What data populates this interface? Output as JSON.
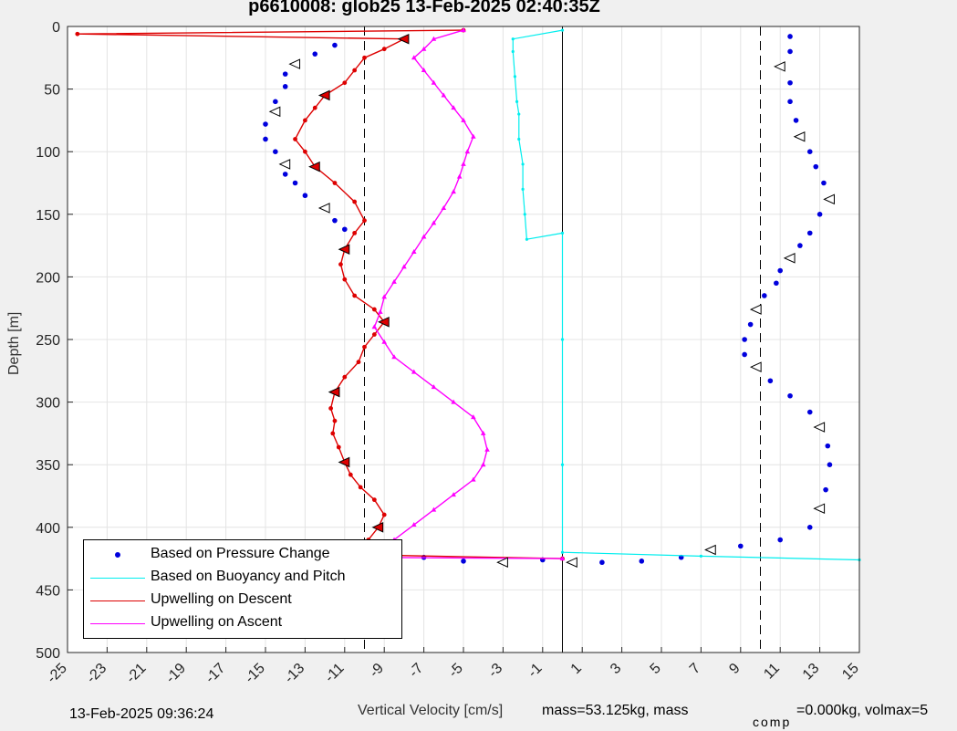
{
  "title": "p6610008: glob25 13-Feb-2025 02:40:35Z",
  "timestamp": "13-Feb-2025 09:36:24",
  "footer": {
    "mass_text": "mass=53.125kg, mass",
    "comp_sub": "comp",
    "rest_text": "=0.000kg, volmax=5"
  },
  "colors": {
    "pressure": "#0000dd",
    "buoyancy": "#00eeee",
    "descent": "#dd0000",
    "ascent": "#ff00ff",
    "background": "#f0f0f0",
    "grid": "#e4e4e4"
  },
  "chart_data": {
    "type": "scatter",
    "title": "p6610008: glob25 13-Feb-2025 02:40:35Z",
    "xlabel": "Vertical Velocity [cm/s]",
    "ylabel": "Depth [m]",
    "xlim": [
      -25,
      15
    ],
    "ylim": [
      0,
      500
    ],
    "y_reversed": true,
    "xticks": [
      -25,
      -23,
      -21,
      -19,
      -17,
      -15,
      -13,
      -11,
      -9,
      -7,
      -5,
      -3,
      -1,
      1,
      3,
      5,
      7,
      9,
      11,
      13,
      15
    ],
    "yticks": [
      0,
      50,
      100,
      150,
      200,
      250,
      300,
      350,
      400,
      450,
      500
    ],
    "grid": true,
    "legend_position": "bottom-left",
    "reference_lines": {
      "dashed_x": [
        -10,
        10
      ],
      "solid_x": [
        0
      ]
    },
    "series": [
      {
        "name": "Based on Pressure Change",
        "style": "dots",
        "points": [
          [
            -11.5,
            15
          ],
          [
            -12.5,
            22
          ],
          [
            -13.5,
            30
          ],
          [
            -14,
            38
          ],
          [
            -14,
            48
          ],
          [
            -14.5,
            60
          ],
          [
            -14.5,
            68
          ],
          [
            -15,
            78
          ],
          [
            -15,
            90
          ],
          [
            -14.5,
            100
          ],
          [
            -14,
            110
          ],
          [
            -14,
            118
          ],
          [
            -13.5,
            125
          ],
          [
            -13,
            135
          ],
          [
            -12,
            145
          ],
          [
            -11.5,
            155
          ],
          [
            -11,
            162
          ],
          [
            -1,
            426
          ],
          [
            -3,
            428
          ],
          [
            -5,
            427
          ],
          [
            -7,
            424
          ],
          [
            -9.5,
            422
          ],
          [
            0.5,
            428
          ],
          [
            2,
            428
          ],
          [
            4,
            427
          ],
          [
            6,
            424
          ],
          [
            7.5,
            418
          ],
          [
            9,
            415
          ],
          [
            11,
            410
          ],
          [
            12.5,
            400
          ],
          [
            13,
            385
          ],
          [
            13.3,
            370
          ],
          [
            13.5,
            350
          ],
          [
            13.4,
            335
          ],
          [
            13,
            320
          ],
          [
            12.5,
            308
          ],
          [
            11.5,
            295
          ],
          [
            10.5,
            283
          ],
          [
            9.8,
            272
          ],
          [
            9.2,
            262
          ],
          [
            9.2,
            250
          ],
          [
            9.5,
            238
          ],
          [
            9.8,
            226
          ],
          [
            10.2,
            215
          ],
          [
            10.8,
            205
          ],
          [
            11,
            195
          ],
          [
            11.5,
            185
          ],
          [
            12,
            175
          ],
          [
            12.5,
            165
          ],
          [
            13,
            150
          ],
          [
            13.5,
            138
          ],
          [
            13.2,
            125
          ],
          [
            12.8,
            112
          ],
          [
            12.5,
            100
          ],
          [
            12,
            88
          ],
          [
            11.8,
            75
          ],
          [
            11.5,
            60
          ],
          [
            11.5,
            45
          ],
          [
            11,
            32
          ],
          [
            11.5,
            20
          ],
          [
            11.5,
            8
          ]
        ]
      },
      {
        "name": "Based on Buoyancy and Pitch",
        "style": "line",
        "points": [
          [
            0,
            3
          ],
          [
            -2.5,
            10
          ],
          [
            -2.5,
            20
          ],
          [
            -2.4,
            40
          ],
          [
            -2.3,
            60
          ],
          [
            -2.2,
            70
          ],
          [
            -2.2,
            90
          ],
          [
            -2,
            110
          ],
          [
            -2,
            130
          ],
          [
            -1.9,
            150
          ],
          [
            -1.8,
            170
          ],
          [
            0,
            165
          ],
          [
            0,
            250
          ],
          [
            0,
            350
          ],
          [
            0,
            420
          ],
          [
            7,
            423
          ],
          [
            15,
            426
          ]
        ]
      },
      {
        "name": "Upwelling on Descent",
        "style": "line-dot",
        "points": [
          [
            -5,
            3
          ],
          [
            -24.5,
            6
          ],
          [
            -8,
            10
          ],
          [
            -9,
            18
          ],
          [
            -10,
            25
          ],
          [
            -10.5,
            35
          ],
          [
            -11,
            45
          ],
          [
            -12,
            55
          ],
          [
            -12.5,
            65
          ],
          [
            -13,
            75
          ],
          [
            -13.5,
            90
          ],
          [
            -13,
            100
          ],
          [
            -12.5,
            112
          ],
          [
            -11.5,
            125
          ],
          [
            -10.5,
            140
          ],
          [
            -10,
            155
          ],
          [
            -10.5,
            165
          ],
          [
            -11,
            178
          ],
          [
            -11.2,
            190
          ],
          [
            -11,
            202
          ],
          [
            -10.5,
            215
          ],
          [
            -9.5,
            226
          ],
          [
            -9,
            236
          ],
          [
            -9.5,
            246
          ],
          [
            -10,
            256
          ],
          [
            -10.3,
            268
          ],
          [
            -11,
            280
          ],
          [
            -11.5,
            292
          ],
          [
            -11.7,
            305
          ],
          [
            -11.5,
            315
          ],
          [
            -11.6,
            325
          ],
          [
            -11.3,
            336
          ],
          [
            -11,
            348
          ],
          [
            -10.7,
            358
          ],
          [
            -10.2,
            368
          ],
          [
            -9.5,
            378
          ],
          [
            -9,
            390
          ],
          [
            -9.3,
            400
          ],
          [
            -9.8,
            410
          ],
          [
            -10,
            418
          ],
          [
            -10,
            422
          ],
          [
            0,
            425
          ]
        ]
      },
      {
        "name": "Upwelling on Ascent",
        "style": "line-triangle",
        "points": [
          [
            -5,
            3
          ],
          [
            -6.5,
            10
          ],
          [
            -7,
            18
          ],
          [
            -7.5,
            25
          ],
          [
            -7,
            35
          ],
          [
            -6.5,
            45
          ],
          [
            -6,
            55
          ],
          [
            -5.5,
            65
          ],
          [
            -5,
            75
          ],
          [
            -4.5,
            88
          ],
          [
            -4.8,
            100
          ],
          [
            -5,
            110
          ],
          [
            -5.2,
            120
          ],
          [
            -5.5,
            132
          ],
          [
            -6,
            145
          ],
          [
            -6.5,
            157
          ],
          [
            -7,
            168
          ],
          [
            -7.5,
            180
          ],
          [
            -8,
            192
          ],
          [
            -8.5,
            204
          ],
          [
            -9,
            216
          ],
          [
            -9.2,
            228
          ],
          [
            -9.5,
            240
          ],
          [
            -9,
            252
          ],
          [
            -8.5,
            264
          ],
          [
            -7.5,
            276
          ],
          [
            -6.5,
            288
          ],
          [
            -5.5,
            300
          ],
          [
            -4.5,
            312
          ],
          [
            -4,
            325
          ],
          [
            -3.8,
            338
          ],
          [
            -4,
            350
          ],
          [
            -4.5,
            362
          ],
          [
            -5.5,
            374
          ],
          [
            -6.5,
            386
          ],
          [
            -7.5,
            398
          ],
          [
            -8.5,
            410
          ],
          [
            -9,
            420
          ],
          [
            -10,
            424
          ],
          [
            0,
            425
          ]
        ]
      }
    ]
  },
  "xlabel": "Vertical Velocity [cm/s]",
  "ylabel": "Depth [m]"
}
